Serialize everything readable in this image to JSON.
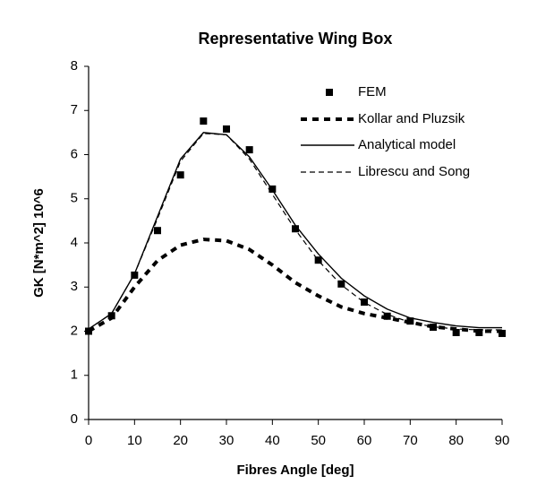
{
  "chart_data": {
    "type": "line",
    "title": "Representative Wing Box",
    "x_label": "Fibres Angle [deg]",
    "y_label": "GK  [N*m^2] 10^6",
    "x": [
      0,
      5,
      10,
      15,
      20,
      25,
      30,
      35,
      40,
      45,
      50,
      55,
      60,
      65,
      70,
      75,
      80,
      85,
      90
    ],
    "series": [
      {
        "name": "FEM",
        "color": "#000000",
        "style": "markers",
        "values": [
          2.0,
          2.35,
          3.27,
          4.28,
          5.54,
          6.76,
          6.58,
          6.11,
          5.22,
          4.32,
          3.61,
          3.07,
          2.66,
          2.34,
          2.23,
          2.09,
          1.97,
          1.97,
          1.95
        ]
      },
      {
        "name": "Kollar and Pluzsik",
        "color": "#000000",
        "style": "thick-dashed",
        "values": [
          2.0,
          2.3,
          3.0,
          3.6,
          3.95,
          4.08,
          4.05,
          3.85,
          3.5,
          3.1,
          2.8,
          2.55,
          2.4,
          2.3,
          2.2,
          2.1,
          2.05,
          2.0,
          2.0
        ]
      },
      {
        "name": "Analytical model",
        "color": "#000000",
        "style": "solid",
        "values": [
          2.05,
          2.4,
          3.3,
          4.6,
          5.9,
          6.5,
          6.45,
          5.95,
          5.2,
          4.4,
          3.75,
          3.2,
          2.8,
          2.5,
          2.3,
          2.2,
          2.12,
          2.08,
          2.08
        ]
      },
      {
        "name": "Librescu and Song",
        "color": "#000000",
        "style": "dashed",
        "values": [
          2.05,
          2.4,
          3.3,
          4.55,
          5.85,
          6.48,
          6.45,
          5.9,
          5.1,
          4.3,
          3.6,
          3.05,
          2.65,
          2.38,
          2.2,
          2.1,
          2.05,
          2.03,
          2.03
        ]
      }
    ],
    "xlim": [
      0,
      90
    ],
    "xticks": [
      0,
      10,
      20,
      30,
      40,
      50,
      60,
      70,
      80,
      90
    ],
    "ylim": [
      0,
      8
    ],
    "yticks": [
      0,
      1,
      2,
      3,
      4,
      5,
      6,
      7,
      8
    ],
    "legend": "top-right"
  }
}
